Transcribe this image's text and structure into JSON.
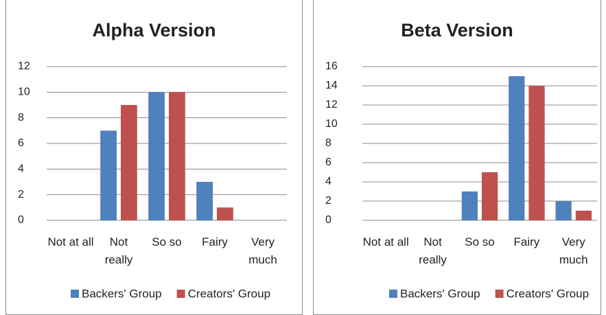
{
  "chart_data": [
    {
      "type": "bar",
      "title": "Alpha Version",
      "categories": [
        "Not at all",
        "Not really",
        "So so",
        "Fairy",
        "Very much"
      ],
      "series": [
        {
          "name": "Backers' Group",
          "color": "#4f81bd",
          "values": [
            0,
            7,
            10,
            3,
            0
          ]
        },
        {
          "name": "Creators' Group",
          "color": "#c0504d",
          "values": [
            0,
            9,
            10,
            1,
            0
          ]
        }
      ],
      "ylim": [
        0,
        12
      ],
      "yticks": [
        0,
        2,
        4,
        6,
        8,
        10,
        12
      ],
      "grid": true,
      "legend": "bottom"
    },
    {
      "type": "bar",
      "title": "Beta Version",
      "categories": [
        "Not at all",
        "Not really",
        "So so",
        "Fairy",
        "Very much"
      ],
      "series": [
        {
          "name": "Backers' Group",
          "color": "#4f81bd",
          "values": [
            0,
            0,
            3,
            15,
            2
          ]
        },
        {
          "name": "Creators' Group",
          "color": "#c0504d",
          "values": [
            0,
            0,
            5,
            14,
            1
          ]
        }
      ],
      "ylim": [
        0,
        16
      ],
      "yticks": [
        0,
        2,
        4,
        6,
        8,
        10,
        12,
        14,
        16
      ],
      "grid": true,
      "legend": "bottom"
    }
  ]
}
